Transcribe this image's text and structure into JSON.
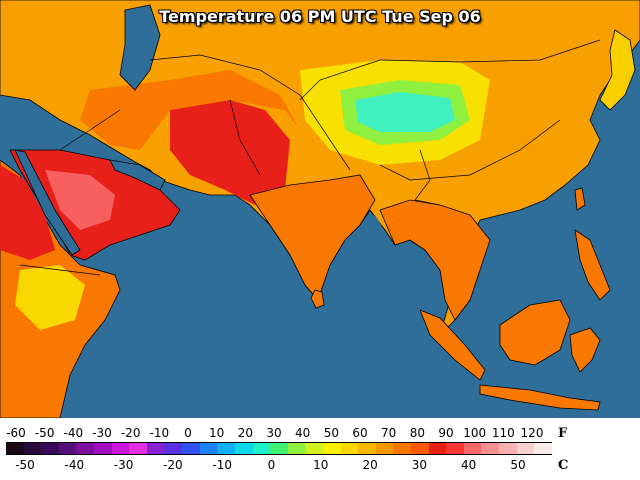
{
  "title": "Temperature 06 PM UTC Tue Sep 06",
  "legend": {
    "fahrenheit_unit": "F",
    "celsius_unit": "C",
    "fahrenheit_ticks": [
      "-60",
      "-50",
      "-40",
      "-30",
      "-20",
      "-10",
      "0",
      "10",
      "20",
      "30",
      "40",
      "50",
      "60",
      "70",
      "80",
      "90",
      "100",
      "110",
      "120"
    ],
    "celsius_ticks": [
      "-50",
      "-40",
      "-30",
      "-20",
      "-10",
      "0",
      "10",
      "20",
      "30",
      "40",
      "50"
    ],
    "colors": [
      "#1a0a14",
      "#2a0a3a",
      "#3a0a5a",
      "#55107a",
      "#7a109a",
      "#a010c0",
      "#c818d8",
      "#e030e0",
      "#8a20d0",
      "#5a30e0",
      "#3050f0",
      "#2080f8",
      "#10b0f8",
      "#10d8e8",
      "#20f0c8",
      "#40f070",
      "#90f040",
      "#d0f020",
      "#f8f000",
      "#f8d800",
      "#f8b800",
      "#f89800",
      "#f87800",
      "#f85800",
      "#e82010",
      "#f83830",
      "#f86868",
      "#f89090",
      "#f8b0b0",
      "#f8d0d0",
      "#fcecec"
    ],
    "colors_meta": "colorbar swatches from coldest to hottest"
  },
  "map": {
    "ocean_color": "#2e6e99",
    "land_colors": {
      "hot": "#e8201a",
      "very_hot": "#f86060",
      "warm": "#f87800",
      "mild": "#f8a800",
      "cool": "#f8e000",
      "cold": "#40f0c0"
    }
  }
}
